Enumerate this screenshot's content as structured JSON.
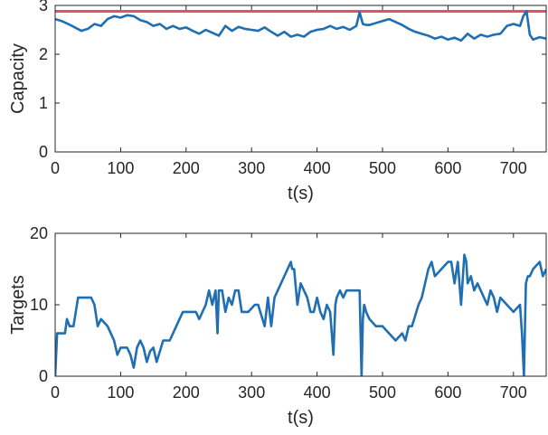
{
  "chart_data": [
    {
      "type": "line",
      "xlabel": "t(s)",
      "ylabel": "Capacity",
      "xlim": [
        0,
        750
      ],
      "ylim": [
        0,
        3
      ],
      "xticks": [
        0,
        100,
        200,
        300,
        400,
        500,
        600,
        700
      ],
      "yticks": [
        0,
        1,
        2,
        3
      ],
      "grid": false,
      "reference_line": {
        "y": 2.88,
        "color": "#e8505b"
      },
      "series": [
        {
          "color": "#1f6fb2",
          "x": [
            0,
            10,
            20,
            30,
            40,
            50,
            60,
            70,
            80,
            90,
            100,
            110,
            120,
            130,
            140,
            150,
            160,
            170,
            180,
            190,
            200,
            210,
            220,
            230,
            240,
            250,
            260,
            270,
            280,
            290,
            300,
            310,
            320,
            330,
            340,
            350,
            360,
            370,
            380,
            390,
            400,
            410,
            420,
            430,
            440,
            450,
            460,
            465,
            470,
            475,
            480,
            490,
            500,
            510,
            520,
            530,
            540,
            550,
            560,
            570,
            580,
            590,
            600,
            610,
            620,
            630,
            640,
            650,
            660,
            670,
            680,
            690,
            700,
            710,
            715,
            720,
            725,
            730,
            740,
            750
          ],
          "y": [
            2.72,
            2.68,
            2.62,
            2.55,
            2.48,
            2.52,
            2.62,
            2.58,
            2.72,
            2.78,
            2.75,
            2.8,
            2.78,
            2.7,
            2.66,
            2.58,
            2.62,
            2.52,
            2.58,
            2.52,
            2.55,
            2.48,
            2.42,
            2.5,
            2.44,
            2.38,
            2.58,
            2.48,
            2.56,
            2.52,
            2.5,
            2.48,
            2.55,
            2.46,
            2.38,
            2.46,
            2.36,
            2.4,
            2.36,
            2.46,
            2.5,
            2.52,
            2.58,
            2.52,
            2.56,
            2.5,
            2.58,
            2.86,
            2.62,
            2.6,
            2.6,
            2.64,
            2.68,
            2.72,
            2.66,
            2.6,
            2.52,
            2.46,
            2.42,
            2.38,
            2.32,
            2.36,
            2.3,
            2.34,
            2.28,
            2.42,
            2.32,
            2.4,
            2.36,
            2.4,
            2.42,
            2.58,
            2.62,
            2.58,
            2.78,
            2.88,
            2.4,
            2.3,
            2.35,
            2.32
          ]
        }
      ]
    },
    {
      "type": "line",
      "xlabel": "t(s)",
      "ylabel": "Targets",
      "xlim": [
        0,
        750
      ],
      "ylim": [
        0,
        20
      ],
      "xticks": [
        0,
        100,
        200,
        300,
        400,
        500,
        600,
        700
      ],
      "yticks": [
        0,
        10,
        20
      ],
      "grid": false,
      "series": [
        {
          "color": "#1f6fb2",
          "x": [
            0,
            3,
            5,
            15,
            18,
            22,
            28,
            35,
            45,
            55,
            60,
            65,
            70,
            80,
            85,
            90,
            95,
            100,
            110,
            115,
            120,
            125,
            130,
            135,
            140,
            145,
            150,
            155,
            165,
            175,
            185,
            195,
            200,
            210,
            215,
            220,
            230,
            235,
            240,
            245,
            248,
            250,
            255,
            260,
            265,
            270,
            275,
            280,
            285,
            295,
            305,
            310,
            320,
            325,
            330,
            335,
            345,
            355,
            360,
            362,
            365,
            370,
            375,
            385,
            390,
            395,
            400,
            405,
            410,
            415,
            420,
            425,
            428,
            430,
            435,
            440,
            445,
            455,
            460,
            465,
            468,
            470,
            472,
            475,
            480,
            490,
            500,
            510,
            520,
            530,
            535,
            540,
            545,
            555,
            560,
            565,
            570,
            575,
            580,
            590,
            600,
            605,
            610,
            615,
            620,
            625,
            628,
            630,
            635,
            640,
            645,
            650,
            660,
            665,
            670,
            675,
            680,
            690,
            700,
            710,
            713,
            716,
            719,
            722,
            725,
            730,
            740,
            745,
            750
          ],
          "y": [
            0,
            6,
            6,
            6,
            8,
            7,
            7,
            11,
            11,
            11,
            10,
            7,
            8,
            7,
            6,
            5,
            3,
            4,
            4,
            3,
            1.2,
            4,
            5,
            4,
            2,
            3.5,
            4,
            2,
            5,
            5,
            7,
            9,
            9,
            9,
            9,
            8,
            10,
            12,
            10,
            12,
            6,
            12,
            12,
            9,
            11,
            10,
            12,
            12,
            9,
            9,
            10,
            10,
            7,
            11,
            7,
            11,
            13,
            15,
            16,
            15,
            15,
            10,
            13,
            11,
            9,
            9,
            11,
            9,
            8,
            10,
            9,
            3,
            10,
            11,
            12,
            11,
            12,
            12,
            12,
            12,
            0,
            8,
            10,
            9,
            8,
            7,
            7,
            6,
            5,
            6,
            5,
            7,
            7,
            10,
            11,
            13,
            15,
            16,
            14,
            15,
            16,
            16,
            13,
            16,
            10,
            17,
            16,
            13,
            14,
            12,
            13,
            12,
            10,
            12,
            11,
            9,
            11,
            10,
            9,
            10,
            6,
            0,
            13,
            14,
            14,
            15,
            16,
            14,
            15
          ]
        }
      ]
    }
  ]
}
